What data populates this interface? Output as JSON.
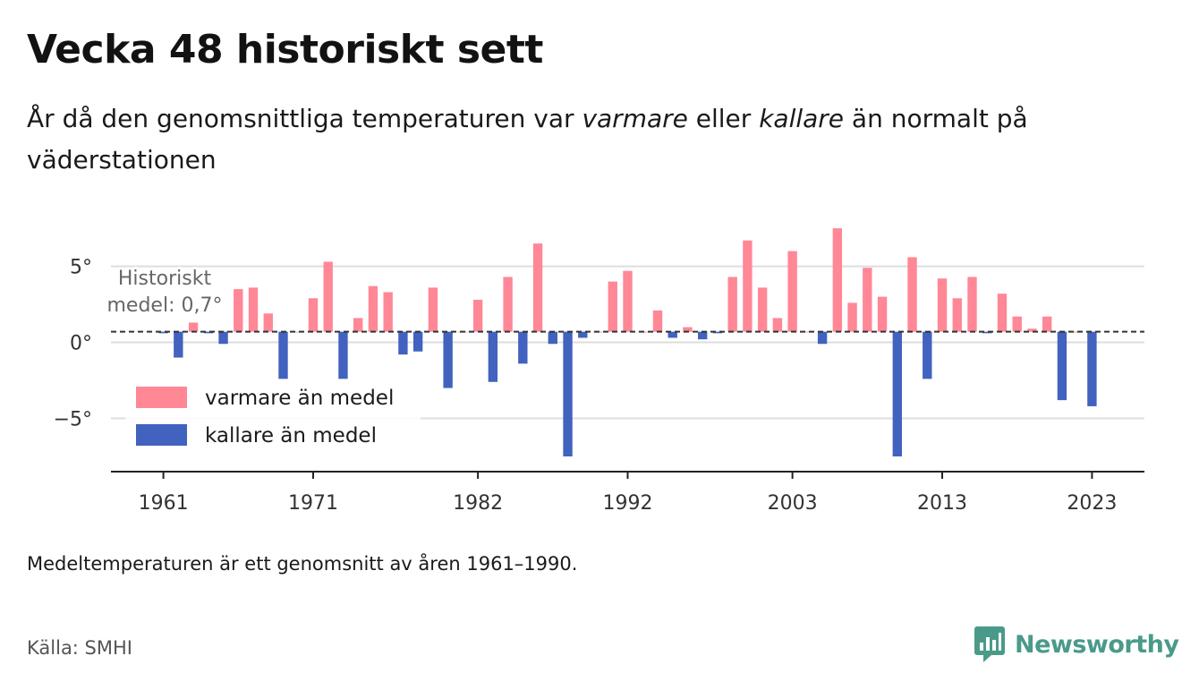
{
  "title": "Vecka 48 historiskt sett",
  "subtitle": {
    "part1": "År då den genomsnittliga temperaturen var ",
    "em1": "varmare",
    "part2": " eller ",
    "em2": "kallare",
    "part3": " än normalt på väderstationen"
  },
  "note": "Medeltemperaturen är ett genomsnitt av åren 1961–1990.",
  "source": "Källa: SMHI",
  "brand": {
    "name": "Newsworthy",
    "icon": "newsworthy-chart-icon"
  },
  "colors": {
    "warm": "#ff8796",
    "cold": "#4162be",
    "grid": "#dddddd",
    "axis": "#222222"
  },
  "chart_data": {
    "type": "bar",
    "baseline": 0.7,
    "baseline_label": [
      "Historiskt",
      "medel: 0,7°"
    ],
    "yticks": [
      {
        "value": 5,
        "label": "5°"
      },
      {
        "value": 0,
        "label": "0°"
      },
      {
        "value": -5,
        "label": "−5°"
      }
    ],
    "xticks": [
      "1961",
      "1971",
      "1982",
      "1992",
      "2003",
      "2013",
      "2023"
    ],
    "ylim": [
      -8.5,
      7.8
    ],
    "xlim": [
      1957.5,
      2026.5
    ],
    "legend": [
      {
        "label": "varmare än medel",
        "color_key": "warm"
      },
      {
        "label": "kallare än medel",
        "color_key": "cold"
      }
    ],
    "legend_position": "bottom-left",
    "x": [
      1961,
      1962,
      1963,
      1964,
      1965,
      1966,
      1967,
      1968,
      1969,
      1970,
      1971,
      1972,
      1973,
      1974,
      1975,
      1976,
      1977,
      1978,
      1979,
      1980,
      1981,
      1982,
      1983,
      1984,
      1985,
      1986,
      1987,
      1988,
      1989,
      1990,
      1991,
      1992,
      1993,
      1994,
      1995,
      1996,
      1997,
      1998,
      1999,
      2000,
      2001,
      2002,
      2003,
      2004,
      2005,
      2006,
      2007,
      2008,
      2009,
      2010,
      2011,
      2012,
      2013,
      2014,
      2015,
      2016,
      2017,
      2018,
      2019,
      2020,
      2021,
      2022,
      2023
    ],
    "values": [
      0.6,
      -1.0,
      1.3,
      0.6,
      -0.1,
      3.5,
      3.6,
      1.9,
      -2.4,
      0.7,
      2.9,
      5.3,
      -2.4,
      1.6,
      3.7,
      3.3,
      -0.8,
      -0.6,
      3.6,
      -3.0,
      0.7,
      2.8,
      -2.6,
      4.3,
      -1.4,
      6.5,
      -0.1,
      -7.5,
      0.3,
      0.7,
      4.0,
      4.7,
      0.7,
      2.1,
      0.3,
      1.0,
      0.2,
      0.6,
      4.3,
      6.7,
      3.6,
      1.6,
      6.0,
      0.7,
      -0.1,
      7.5,
      2.6,
      4.9,
      3.0,
      -7.5,
      5.6,
      -2.4,
      4.2,
      2.9,
      4.3,
      0.6,
      3.2,
      1.7,
      0.9,
      1.7,
      -3.8,
      0.7,
      -4.2
    ]
  }
}
